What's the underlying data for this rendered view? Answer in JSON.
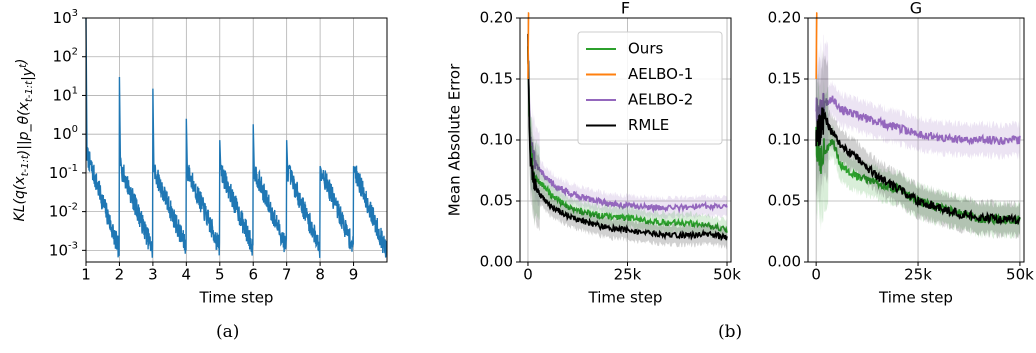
{
  "colors": {
    "kl": "#1f77b4",
    "ours": "#2ca02c",
    "aelbo1": "#ff7f0e",
    "aelbo2": "#9467bd",
    "rmle": "#000000",
    "grid": "#b0b0b0"
  },
  "panel_labels": [
    "(a)",
    "(b)"
  ],
  "chart_data": [
    {
      "type": "line",
      "ylabel": "KL(q(x_{t-1:t})||p_θ(x_{t-1:t}|y^t)",
      "xlabel": "Time step",
      "yscale": "log",
      "ylim": [
        0.0005,
        1000
      ],
      "xlim": [
        1,
        10
      ],
      "xticks": [
        1,
        2,
        3,
        4,
        5,
        6,
        7,
        8,
        9
      ],
      "yticks": [
        "10^-3",
        "10^-2",
        "10^-1",
        "10^0",
        "10^1",
        "10^2",
        "10^3"
      ],
      "grid": true,
      "series": [
        {
          "peaks_x": [
            1,
            2,
            3,
            4,
            5,
            6,
            7,
            8,
            9
          ],
          "peak_values": [
            1000,
            30,
            15,
            2.5,
            0.7,
            1.8,
            0.7,
            0.15,
            0.15
          ],
          "decay_start_values": [
            0.3,
            0.15,
            0.12,
            0.12,
            0.12,
            0.12,
            0.12,
            0.12,
            0.12
          ],
          "decay_end_values": [
            0.001,
            0.001,
            0.0012,
            0.0012,
            0.0012,
            0.0012,
            0.0012,
            0.0012,
            0.0009
          ]
        }
      ]
    },
    {
      "type": "line",
      "title": "F",
      "xlabel": "Time step",
      "ylabel": "Mean Absolute Error",
      "ylim": [
        0,
        0.2
      ],
      "xlim": [
        -2000,
        51000
      ],
      "xticks": [
        "0",
        "25k",
        "50k"
      ],
      "xtick_values": [
        0,
        25000,
        50000
      ],
      "yticks": [
        "0.00",
        "0.05",
        "0.10",
        "0.15",
        "0.20"
      ],
      "ytick_values": [
        0,
        0.05,
        0.1,
        0.15,
        0.2
      ],
      "grid": true,
      "legend": {
        "position": "top-right",
        "entries": [
          "Ours",
          "AELBO-1",
          "AELBO-2",
          "RMLE"
        ]
      },
      "series": [
        {
          "name": "Ours",
          "key": "ours",
          "x": [
            0,
            500,
            1500,
            3000,
            6000,
            10000,
            15000,
            20000,
            25000,
            30000,
            35000,
            40000,
            45000,
            50000
          ],
          "values": [
            0.18,
            0.09,
            0.07,
            0.065,
            0.055,
            0.045,
            0.04,
            0.037,
            0.036,
            0.034,
            0.032,
            0.032,
            0.03,
            0.026
          ]
        },
        {
          "name": "AELBO-1",
          "key": "aelbo1",
          "x": [
            0,
            150,
            300
          ],
          "values": [
            0.2,
            0.2,
            0.2
          ]
        },
        {
          "name": "AELBO-2",
          "key": "aelbo2",
          "x": [
            0,
            500,
            1500,
            3000,
            6000,
            10000,
            15000,
            20000,
            25000,
            30000,
            35000,
            40000,
            45000,
            50000
          ],
          "values": [
            0.18,
            0.1,
            0.085,
            0.075,
            0.065,
            0.057,
            0.052,
            0.048,
            0.046,
            0.045,
            0.044,
            0.045,
            0.046,
            0.045
          ]
        },
        {
          "name": "RMLE",
          "key": "rmle",
          "x": [
            0,
            500,
            1500,
            3000,
            6000,
            10000,
            15000,
            20000,
            25000,
            30000,
            35000,
            40000,
            45000,
            50000
          ],
          "values": [
            0.18,
            0.09,
            0.065,
            0.055,
            0.045,
            0.038,
            0.032,
            0.028,
            0.026,
            0.024,
            0.022,
            0.022,
            0.023,
            0.02
          ]
        }
      ]
    },
    {
      "type": "line",
      "title": "G",
      "xlabel": "Time step",
      "ylim": [
        0,
        0.2
      ],
      "xlim": [
        -2000,
        51000
      ],
      "xticks": [
        "0",
        "25k",
        "50k"
      ],
      "xtick_values": [
        0,
        25000,
        50000
      ],
      "yticks": [
        "0.00",
        "0.05",
        "0.10",
        "0.15",
        "0.20"
      ],
      "ytick_values": [
        0,
        0.05,
        0.1,
        0.15,
        0.2
      ],
      "grid": true,
      "series": [
        {
          "name": "Ours",
          "key": "ours",
          "x": [
            0,
            1000,
            2000,
            4000,
            6000,
            10000,
            15000,
            20000,
            25000,
            30000,
            35000,
            40000,
            45000,
            50000
          ],
          "values": [
            0.1,
            0.085,
            0.09,
            0.1,
            0.08,
            0.07,
            0.065,
            0.06,
            0.05,
            0.045,
            0.04,
            0.035,
            0.035,
            0.035
          ]
        },
        {
          "name": "AELBO-1",
          "key": "aelbo1",
          "x": [
            0,
            150,
            300
          ],
          "values": [
            0.2,
            0.2,
            0.2
          ]
        },
        {
          "name": "AELBO-2",
          "key": "aelbo2",
          "x": [
            0,
            1000,
            2000,
            4000,
            6000,
            10000,
            15000,
            20000,
            25000,
            30000,
            35000,
            40000,
            45000,
            50000
          ],
          "values": [
            0.13,
            0.12,
            0.13,
            0.135,
            0.125,
            0.12,
            0.115,
            0.11,
            0.105,
            0.102,
            0.1,
            0.1,
            0.1,
            0.1
          ]
        },
        {
          "name": "RMLE",
          "key": "rmle",
          "x": [
            0,
            1000,
            2000,
            4000,
            6000,
            10000,
            15000,
            20000,
            25000,
            30000,
            35000,
            40000,
            45000,
            50000
          ],
          "values": [
            0.1,
            0.11,
            0.12,
            0.105,
            0.095,
            0.085,
            0.07,
            0.06,
            0.05,
            0.045,
            0.04,
            0.037,
            0.035,
            0.035
          ]
        }
      ]
    }
  ]
}
